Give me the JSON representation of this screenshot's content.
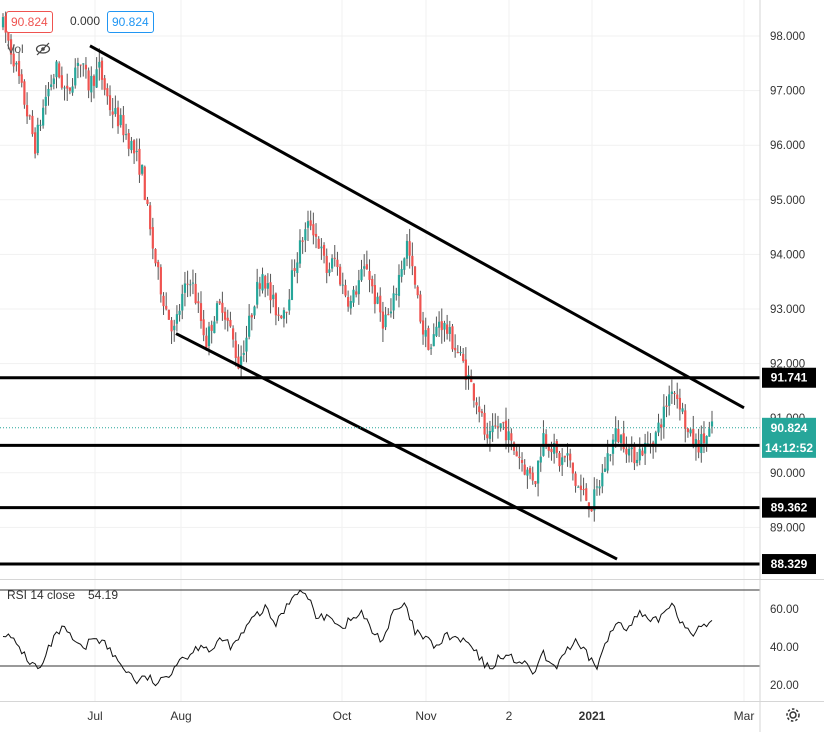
{
  "header": {
    "open_value": "90.824",
    "change_value": "0.000",
    "close_value": "90.824",
    "vol_label": "Vol"
  },
  "colors": {
    "up": "#26a69a",
    "down": "#ef5350",
    "wick": "#555555",
    "line": "#000000",
    "price_tag": "#26a69a",
    "level_tag": "#000000"
  },
  "chart_data": [
    {
      "type": "candlestick",
      "x_tick_labels": [
        "Jul",
        "Aug",
        "Oct",
        "Nov",
        "2",
        "2021",
        "Mar"
      ],
      "y_tick_labels": [
        "98.000",
        "97.000",
        "96.000",
        "95.000",
        "94.000",
        "93.000",
        "92.000",
        "91.000",
        "90.000",
        "89.000"
      ],
      "ylim": [
        88.0,
        98.6
      ],
      "last_price": "90.824",
      "countdown": "14:12:52",
      "horizontal_levels": [
        {
          "value": 91.741,
          "label": "91.741"
        },
        {
          "value": 90.503,
          "label": "90.503"
        },
        {
          "value": 89.362,
          "label": "89.362"
        },
        {
          "value": 88.329,
          "label": "88.329"
        }
      ],
      "price_waypoints": [
        [
          0,
          98.2
        ],
        [
          4,
          97.6
        ],
        [
          8,
          96.8
        ],
        [
          12,
          96.0
        ],
        [
          16,
          96.9
        ],
        [
          20,
          97.4
        ],
        [
          24,
          96.9
        ],
        [
          28,
          97.6
        ],
        [
          32,
          97.1
        ],
        [
          36,
          97.4
        ],
        [
          40,
          96.7
        ],
        [
          44,
          96.4
        ],
        [
          48,
          96.0
        ],
        [
          52,
          95.5
        ],
        [
          55,
          94.4
        ],
        [
          58,
          93.6
        ],
        [
          61,
          93.0
        ],
        [
          64,
          92.6
        ],
        [
          67,
          93.2
        ],
        [
          70,
          93.6
        ],
        [
          73,
          93.0
        ],
        [
          76,
          92.4
        ],
        [
          79,
          92.9
        ],
        [
          82,
          93.1
        ],
        [
          85,
          92.6
        ],
        [
          88,
          92.0
        ],
        [
          91,
          92.5
        ],
        [
          94,
          93.2
        ],
        [
          97,
          93.7
        ],
        [
          100,
          93.2
        ],
        [
          103,
          92.9
        ],
        [
          106,
          93.1
        ],
        [
          109,
          93.8
        ],
        [
          112,
          94.3
        ],
        [
          115,
          94.6
        ],
        [
          118,
          94.2
        ],
        [
          121,
          93.7
        ],
        [
          124,
          93.9
        ],
        [
          127,
          93.4
        ],
        [
          130,
          93.1
        ],
        [
          133,
          93.5
        ],
        [
          136,
          93.8
        ],
        [
          139,
          93.2
        ],
        [
          142,
          92.8
        ],
        [
          145,
          92.9
        ],
        [
          148,
          93.6
        ],
        [
          151,
          94.2
        ],
        [
          154,
          93.4
        ],
        [
          157,
          92.6
        ],
        [
          160,
          92.3
        ],
        [
          163,
          92.8
        ],
        [
          166,
          92.6
        ],
        [
          169,
          92.3
        ],
        [
          172,
          92.0
        ],
        [
          175,
          91.6
        ],
        [
          178,
          91.2
        ],
        [
          181,
          90.5
        ],
        [
          184,
          90.8
        ],
        [
          187,
          90.9
        ],
        [
          190,
          90.5
        ],
        [
          193,
          90.3
        ],
        [
          196,
          90.0
        ],
        [
          199,
          89.9
        ],
        [
          202,
          90.7
        ],
        [
          205,
          90.5
        ],
        [
          208,
          90.2
        ],
        [
          211,
          90.3
        ],
        [
          214,
          89.8
        ],
        [
          217,
          89.6
        ],
        [
          220,
          89.4
        ],
        [
          223,
          89.8
        ],
        [
          226,
          90.3
        ],
        [
          229,
          90.7
        ],
        [
          232,
          90.6
        ],
        [
          235,
          90.3
        ],
        [
          238,
          90.4
        ],
        [
          241,
          90.5
        ],
        [
          244,
          90.7
        ],
        [
          247,
          91.1
        ],
        [
          250,
          91.6
        ],
        [
          253,
          91.3
        ],
        [
          256,
          90.7
        ],
        [
          259,
          90.5
        ],
        [
          262,
          90.6
        ],
        [
          265,
          90.8
        ]
      ]
    },
    {
      "type": "line",
      "title": "RSI 14 close",
      "value_label": "54.19",
      "y_tick_labels": [
        "60.00",
        "40.00",
        "20.00"
      ],
      "ylim": [
        8,
        83
      ],
      "band_levels": [
        70,
        30
      ],
      "waypoints": [
        [
          0,
          48
        ],
        [
          6,
          40
        ],
        [
          10,
          32
        ],
        [
          14,
          28
        ],
        [
          18,
          42
        ],
        [
          22,
          50
        ],
        [
          26,
          44
        ],
        [
          30,
          38
        ],
        [
          34,
          46
        ],
        [
          38,
          42
        ],
        [
          42,
          34
        ],
        [
          46,
          28
        ],
        [
          50,
          22
        ],
        [
          54,
          24
        ],
        [
          58,
          20
        ],
        [
          62,
          26
        ],
        [
          66,
          34
        ],
        [
          70,
          36
        ],
        [
          74,
          42
        ],
        [
          78,
          38
        ],
        [
          82,
          44
        ],
        [
          86,
          40
        ],
        [
          90,
          48
        ],
        [
          94,
          56
        ],
        [
          98,
          60
        ],
        [
          102,
          52
        ],
        [
          106,
          62
        ],
        [
          110,
          70
        ],
        [
          114,
          66
        ],
        [
          118,
          54
        ],
        [
          122,
          58
        ],
        [
          126,
          50
        ],
        [
          130,
          54
        ],
        [
          134,
          58
        ],
        [
          138,
          48
        ],
        [
          142,
          44
        ],
        [
          146,
          58
        ],
        [
          150,
          62
        ],
        [
          154,
          48
        ],
        [
          158,
          44
        ],
        [
          162,
          40
        ],
        [
          166,
          46
        ],
        [
          170,
          44
        ],
        [
          174,
          42
        ],
        [
          178,
          34
        ],
        [
          182,
          28
        ],
        [
          186,
          36
        ],
        [
          190,
          34
        ],
        [
          194,
          32
        ],
        [
          198,
          26
        ],
        [
          202,
          36
        ],
        [
          206,
          28
        ],
        [
          210,
          38
        ],
        [
          214,
          42
        ],
        [
          218,
          36
        ],
        [
          222,
          30
        ],
        [
          226,
          44
        ],
        [
          230,
          54
        ],
        [
          234,
          50
        ],
        [
          238,
          58
        ],
        [
          242,
          52
        ],
        [
          246,
          56
        ],
        [
          250,
          64
        ],
        [
          254,
          52
        ],
        [
          258,
          48
        ],
        [
          262,
          50
        ],
        [
          265,
          54
        ]
      ]
    }
  ]
}
